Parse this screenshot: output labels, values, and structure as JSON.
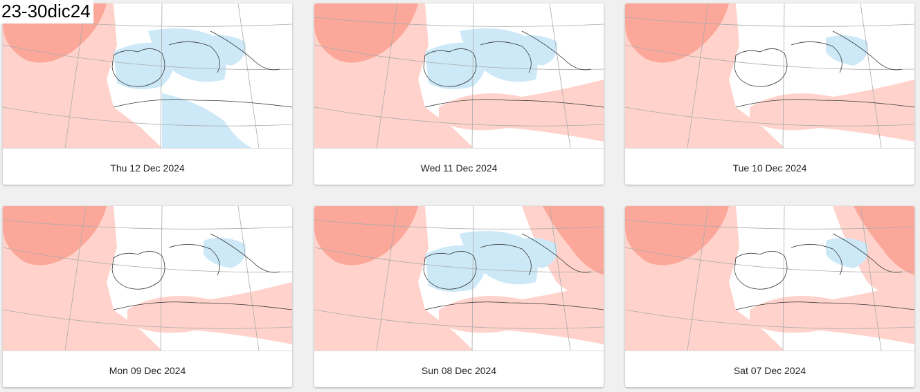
{
  "overlay_label": "23-30dic24",
  "cards": [
    {
      "date": "Thu 12 Dec 2024",
      "blue": 3,
      "red": 1
    },
    {
      "date": "Wed 11 Dec 2024",
      "blue": 2,
      "red": 2
    },
    {
      "date": "Tue 10 Dec 2024",
      "blue": 1,
      "red": 2
    },
    {
      "date": "Mon 09 Dec 2024",
      "blue": 1,
      "red": 2
    },
    {
      "date": "Sun 08 Dec 2024",
      "blue": 2,
      "red": 3
    },
    {
      "date": "Sat 07 Dec 2024",
      "blue": 1,
      "red": 3
    }
  ],
  "colors": {
    "anomaly_warm": "#ffd3cb",
    "anomaly_hot": "#fba89a",
    "anomaly_cold": "#cde9f8"
  }
}
